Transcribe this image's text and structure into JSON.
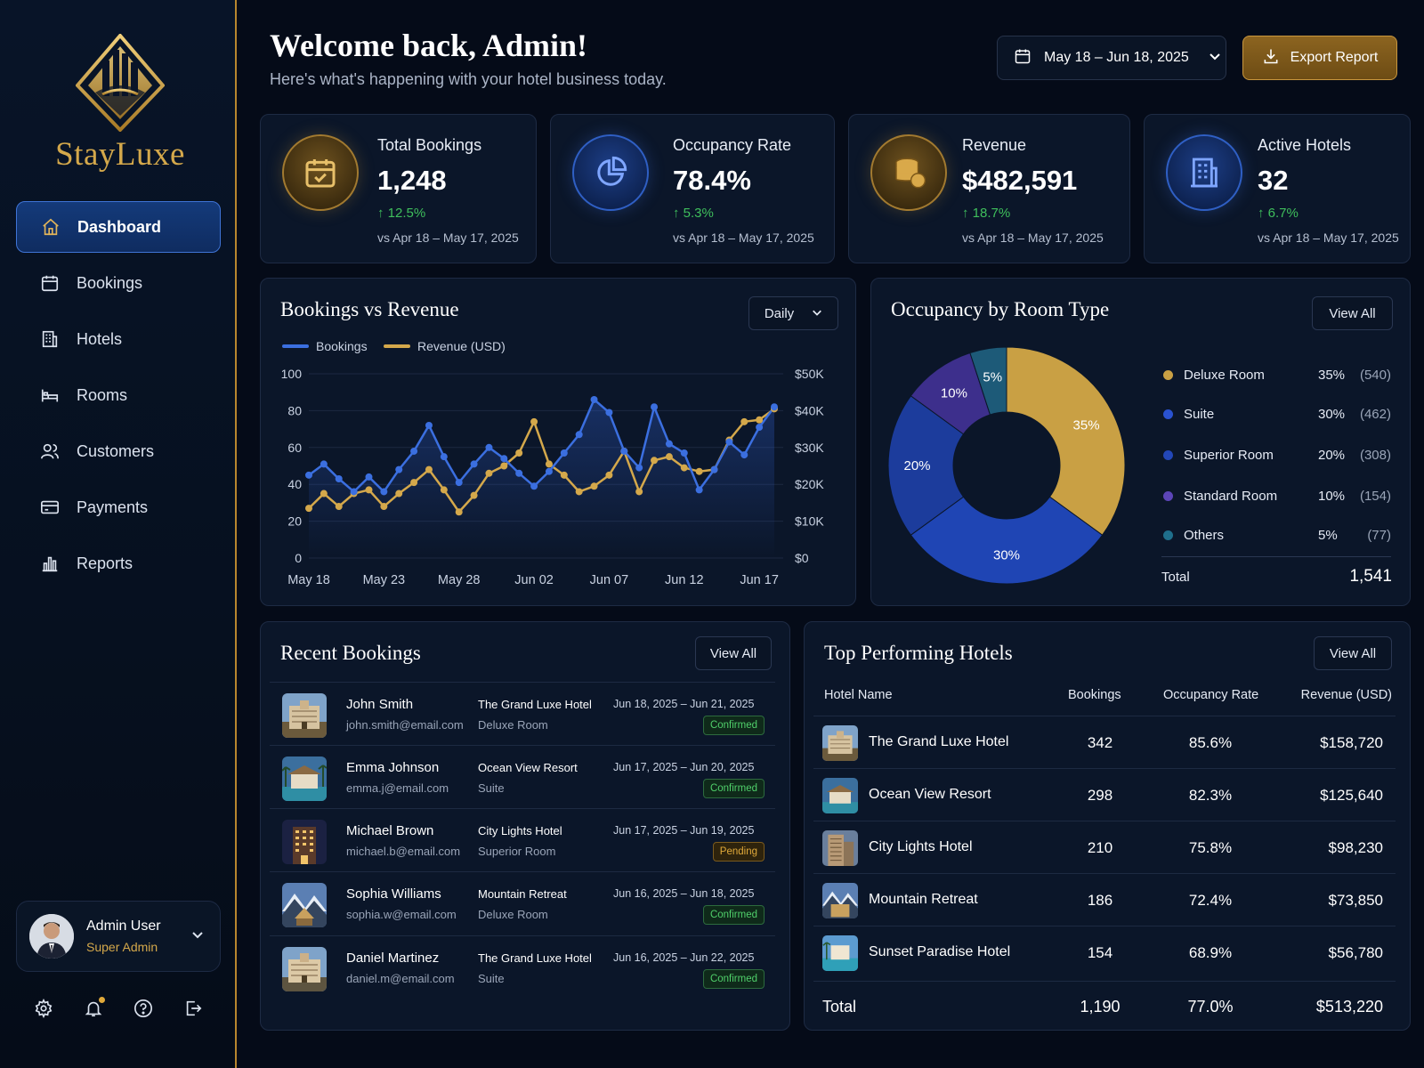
{
  "brand": {
    "name": "StayLuxe"
  },
  "nav": [
    {
      "label": "Dashboard",
      "icon": "home-icon",
      "active": true
    },
    {
      "label": "Bookings",
      "icon": "calendar-icon"
    },
    {
      "label": "Hotels",
      "icon": "building-icon"
    },
    {
      "label": "Rooms",
      "icon": "bed-icon"
    },
    {
      "label": "Customers",
      "icon": "users-icon"
    },
    {
      "label": "Payments",
      "icon": "credit-card-icon"
    },
    {
      "label": "Reports",
      "icon": "bar-chart-icon"
    }
  ],
  "user": {
    "name": "Admin User",
    "role": "Super Admin"
  },
  "header": {
    "title": "Welcome back, Admin!",
    "subtitle": "Here's what's happening with your hotel business today.",
    "date_range": "May 18 – Jun 18, 2025",
    "export_label": "Export Report"
  },
  "stats": [
    {
      "title": "Total Bookings",
      "value": "1,248",
      "change": "12.5%",
      "compare": "vs Apr 18 – May 17, 2025",
      "icon": "calendar-check-icon"
    },
    {
      "title": "Occupancy Rate",
      "value": "78.4%",
      "change": "5.3%",
      "compare": "vs Apr 18 – May 17, 2025",
      "icon": "pie-chart-icon"
    },
    {
      "title": "Revenue",
      "value": "$482,591",
      "change": "18.7%",
      "compare": "vs Apr 18 – May 17, 2025",
      "icon": "coins-icon"
    },
    {
      "title": "Active Hotels",
      "value": "32",
      "change": "6.7%",
      "compare": "vs Apr 18 – May 17, 2025",
      "icon": "building-icon"
    }
  ],
  "bookings_chart": {
    "title": "Bookings vs Revenue",
    "period": "Daily",
    "legend": [
      "Bookings",
      "Revenue (USD)"
    ],
    "colors": {
      "bookings": "#3b6fe0",
      "revenue": "#d4a84b"
    },
    "y_left_ticks": [
      "100",
      "80",
      "60",
      "40",
      "20",
      "0"
    ],
    "y_right_ticks": [
      "$50K",
      "$40K",
      "$30K",
      "$20K",
      "$10K",
      "$0"
    ],
    "x_ticks": [
      "May 18",
      "May 23",
      "May 28",
      "Jun 02",
      "Jun 07",
      "Jun 12",
      "Jun 17"
    ]
  },
  "chart_data": {
    "type": "line",
    "title": "Bookings vs Revenue",
    "x": [
      "May 18",
      "May 19",
      "May 20",
      "May 21",
      "May 22",
      "May 23",
      "May 24",
      "May 25",
      "May 26",
      "May 27",
      "May 28",
      "May 29",
      "May 30",
      "May 31",
      "Jun 01",
      "Jun 02",
      "Jun 03",
      "Jun 04",
      "Jun 05",
      "Jun 06",
      "Jun 07",
      "Jun 08",
      "Jun 09",
      "Jun 10",
      "Jun 11",
      "Jun 12",
      "Jun 13",
      "Jun 14",
      "Jun 15",
      "Jun 16",
      "Jun 17",
      "Jun 18"
    ],
    "series": [
      {
        "name": "Bookings",
        "axis": "left",
        "values": [
          45,
          51,
          43,
          36,
          44,
          36,
          48,
          58,
          72,
          55,
          41,
          51,
          60,
          54,
          46,
          39,
          47,
          57,
          67,
          86,
          79,
          58,
          49,
          82,
          62,
          57,
          37,
          48,
          63,
          56,
          71,
          82
        ]
      },
      {
        "name": "Revenue (USD)",
        "axis": "right",
        "values": [
          13500,
          17500,
          14000,
          17500,
          18500,
          14000,
          17500,
          20500,
          24000,
          18500,
          12500,
          17000,
          23000,
          25000,
          28500,
          37000,
          25500,
          22500,
          18000,
          19500,
          22500,
          29000,
          18000,
          26500,
          27500,
          24500,
          23500,
          24000,
          32000,
          37000,
          37500,
          40500
        ]
      }
    ],
    "ylim_left": [
      0,
      100
    ],
    "ylim_right": [
      0,
      50000
    ]
  },
  "occupancy": {
    "title": "Occupancy by Room Type",
    "view_all": "View All",
    "items": [
      {
        "name": "Deluxe Room",
        "pct": "35%",
        "count": "(540)",
        "value": 35,
        "color": "#c9a044"
      },
      {
        "name": "Suite",
        "pct": "30%",
        "count": "(462)",
        "value": 30,
        "color": "#1f45b4"
      },
      {
        "name": "Superior Room",
        "pct": "20%",
        "count": "(308)",
        "value": 20,
        "color": "#1c3c9c"
      },
      {
        "name": "Standard Room",
        "pct": "10%",
        "count": "(154)",
        "value": 10,
        "color": "#3d2f8c"
      },
      {
        "name": "Others",
        "pct": "5%",
        "count": "(77)",
        "value": 5,
        "color": "#1d5a78"
      }
    ],
    "total_label": "Total",
    "total_value": "1,541"
  },
  "recent_bookings": {
    "title": "Recent Bookings",
    "view_all": "View All",
    "rows": [
      {
        "name": "John Smith",
        "email": "john.smith@email.com",
        "hotel": "The Grand Luxe Hotel",
        "room": "Deluxe Room",
        "dates": "Jun 18, 2025 – Jun 21, 2025",
        "status": "Confirmed",
        "status_key": "confirmed"
      },
      {
        "name": "Emma Johnson",
        "email": "emma.j@email.com",
        "hotel": "Ocean View Resort",
        "room": "Suite",
        "dates": "Jun 17, 2025 – Jun 20, 2025",
        "status": "Confirmed",
        "status_key": "confirmed"
      },
      {
        "name": "Michael Brown",
        "email": "michael.b@email.com",
        "hotel": "City Lights Hotel",
        "room": "Superior Room",
        "dates": "Jun 17, 2025 – Jun 19, 2025",
        "status": "Pending",
        "status_key": "pending"
      },
      {
        "name": "Sophia Williams",
        "email": "sophia.w@email.com",
        "hotel": "Mountain Retreat",
        "room": "Deluxe Room",
        "dates": "Jun 16, 2025 – Jun 18, 2025",
        "status": "Confirmed",
        "status_key": "confirmed"
      },
      {
        "name": "Daniel Martinez",
        "email": "daniel.m@email.com",
        "hotel": "The Grand Luxe Hotel",
        "room": "Suite",
        "dates": "Jun 16, 2025 – Jun 22, 2025",
        "status": "Confirmed",
        "status_key": "confirmed"
      }
    ]
  },
  "top_hotels": {
    "title": "Top Performing Hotels",
    "view_all": "View All",
    "columns": [
      "Hotel Name",
      "Bookings",
      "Occupancy Rate",
      "Revenue (USD)"
    ],
    "rows": [
      {
        "name": "The Grand Luxe Hotel",
        "bookings": "342",
        "occupancy": "85.6%",
        "revenue": "$158,720"
      },
      {
        "name": "Ocean View Resort",
        "bookings": "298",
        "occupancy": "82.3%",
        "revenue": "$125,640"
      },
      {
        "name": "City Lights Hotel",
        "bookings": "210",
        "occupancy": "75.8%",
        "revenue": "$98,230"
      },
      {
        "name": "Mountain Retreat",
        "bookings": "186",
        "occupancy": "72.4%",
        "revenue": "$73,850"
      },
      {
        "name": "Sunset Paradise Hotel",
        "bookings": "154",
        "occupancy": "68.9%",
        "revenue": "$56,780"
      }
    ],
    "total": {
      "label": "Total",
      "bookings": "1,190",
      "occupancy": "77.0%",
      "revenue": "$513,220"
    }
  }
}
